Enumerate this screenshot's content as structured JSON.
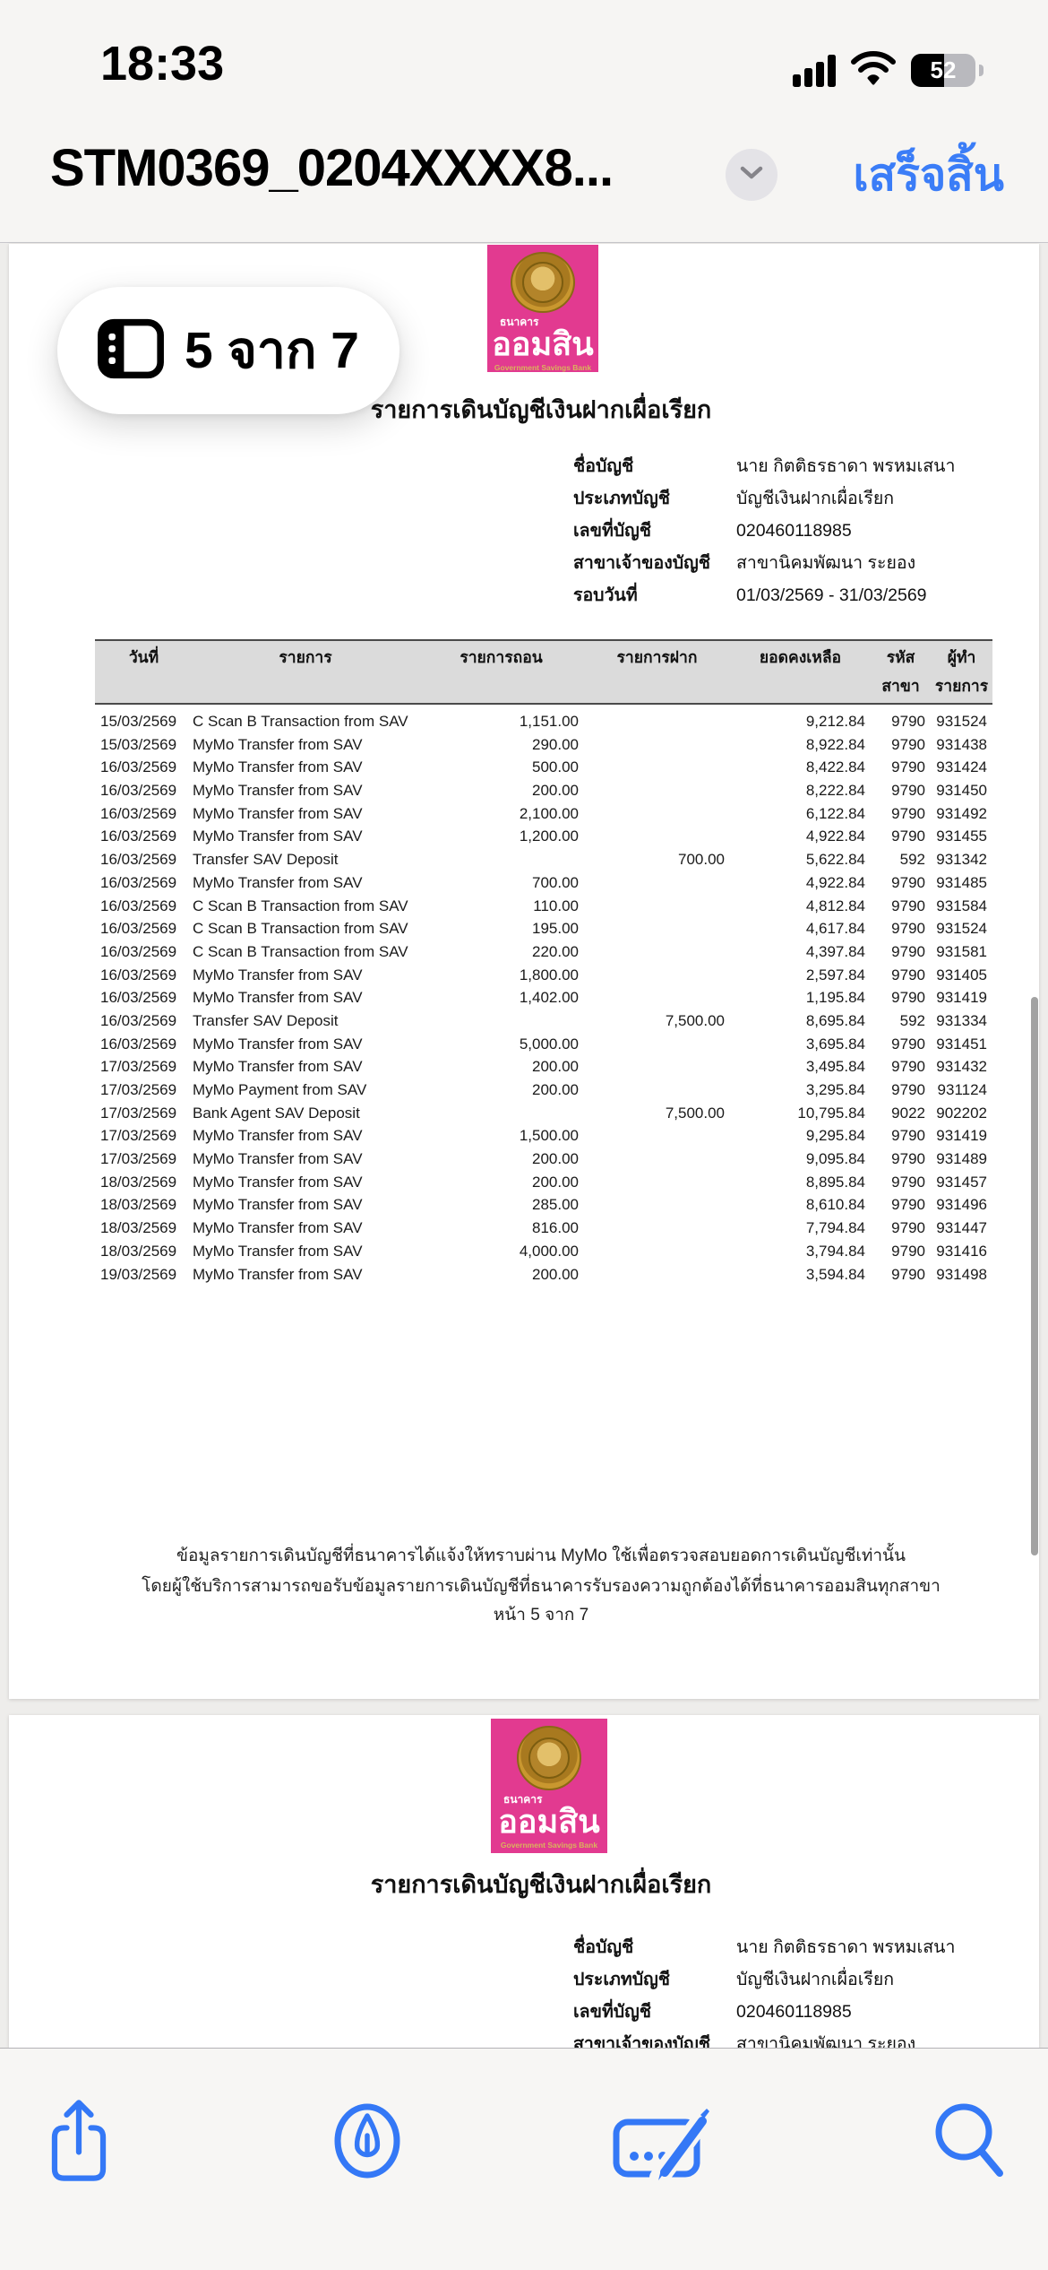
{
  "status_bar": {
    "time": "18:33",
    "battery_percent": "52"
  },
  "nav": {
    "title": "STM0369_0204XXXX8...",
    "done": "เสร็จสิ้น"
  },
  "page_pill": {
    "label": "5 จาก 7"
  },
  "bank": {
    "brand_top": "ธนาคาร",
    "brand": "ออมสิน",
    "brand_en": "Government Savings Bank",
    "brand_pink": "#E23A90",
    "seal_gold": "#B98A2D"
  },
  "statement": {
    "title": "รายการเดินบัญชีเงินฝากเผื่อเรียก",
    "account_info": [
      {
        "label": "ชื่อบัญชี",
        "value": "นาย กิตติธรธาดา พรหมเสนา"
      },
      {
        "label": "ประเภทบัญชี",
        "value": "บัญชีเงินฝากเผื่อเรียก"
      },
      {
        "label": "เลขที่บัญชี",
        "value": "020460118985"
      },
      {
        "label": "สาขาเจ้าของบัญชี",
        "value": "สาขานิคมพัฒนา ระยอง"
      },
      {
        "label": "รอบวันที่",
        "value": "01/03/2569 - 31/03/2569"
      }
    ],
    "table": {
      "headers": [
        {
          "l1": "วันที่",
          "l2": ""
        },
        {
          "l1": "รายการ",
          "l2": ""
        },
        {
          "l1": "รายการถอน",
          "l2": ""
        },
        {
          "l1": "รายการฝาก",
          "l2": ""
        },
        {
          "l1": "ยอดคงเหลือ",
          "l2": ""
        },
        {
          "l1": "รหัส",
          "l2": "สาขา"
        },
        {
          "l1": "ผู้ทำ",
          "l2": "รายการ"
        }
      ],
      "rows": [
        {
          "date": "15/03/2569",
          "desc": "C Scan B Transaction from SAV",
          "out": "1,151.00",
          "in": "",
          "bal": "9,212.84",
          "br": "9790",
          "by": "931524"
        },
        {
          "date": "15/03/2569",
          "desc": "MyMo Transfer from SAV",
          "out": "290.00",
          "in": "",
          "bal": "8,922.84",
          "br": "9790",
          "by": "931438"
        },
        {
          "date": "16/03/2569",
          "desc": "MyMo Transfer from SAV",
          "out": "500.00",
          "in": "",
          "bal": "8,422.84",
          "br": "9790",
          "by": "931424"
        },
        {
          "date": "16/03/2569",
          "desc": "MyMo Transfer from SAV",
          "out": "200.00",
          "in": "",
          "bal": "8,222.84",
          "br": "9790",
          "by": "931450"
        },
        {
          "date": "16/03/2569",
          "desc": "MyMo Transfer from SAV",
          "out": "2,100.00",
          "in": "",
          "bal": "6,122.84",
          "br": "9790",
          "by": "931492"
        },
        {
          "date": "16/03/2569",
          "desc": "MyMo Transfer from SAV",
          "out": "1,200.00",
          "in": "",
          "bal": "4,922.84",
          "br": "9790",
          "by": "931455"
        },
        {
          "date": "16/03/2569",
          "desc": "Transfer SAV Deposit",
          "out": "",
          "in": "700.00",
          "bal": "5,622.84",
          "br": "592",
          "by": "931342"
        },
        {
          "date": "16/03/2569",
          "desc": "MyMo Transfer from SAV",
          "out": "700.00",
          "in": "",
          "bal": "4,922.84",
          "br": "9790",
          "by": "931485"
        },
        {
          "date": "16/03/2569",
          "desc": "C Scan B Transaction from SAV",
          "out": "110.00",
          "in": "",
          "bal": "4,812.84",
          "br": "9790",
          "by": "931584"
        },
        {
          "date": "16/03/2569",
          "desc": "C Scan B Transaction from SAV",
          "out": "195.00",
          "in": "",
          "bal": "4,617.84",
          "br": "9790",
          "by": "931524"
        },
        {
          "date": "16/03/2569",
          "desc": "C Scan B Transaction from SAV",
          "out": "220.00",
          "in": "",
          "bal": "4,397.84",
          "br": "9790",
          "by": "931581"
        },
        {
          "date": "16/03/2569",
          "desc": "MyMo Transfer from SAV",
          "out": "1,800.00",
          "in": "",
          "bal": "2,597.84",
          "br": "9790",
          "by": "931405"
        },
        {
          "date": "16/03/2569",
          "desc": "MyMo Transfer from SAV",
          "out": "1,402.00",
          "in": "",
          "bal": "1,195.84",
          "br": "9790",
          "by": "931419"
        },
        {
          "date": "16/03/2569",
          "desc": "Transfer SAV Deposit",
          "out": "",
          "in": "7,500.00",
          "bal": "8,695.84",
          "br": "592",
          "by": "931334"
        },
        {
          "date": "16/03/2569",
          "desc": "MyMo Transfer from SAV",
          "out": "5,000.00",
          "in": "",
          "bal": "3,695.84",
          "br": "9790",
          "by": "931451"
        },
        {
          "date": "17/03/2569",
          "desc": "MyMo Transfer from SAV",
          "out": "200.00",
          "in": "",
          "bal": "3,495.84",
          "br": "9790",
          "by": "931432"
        },
        {
          "date": "17/03/2569",
          "desc": "MyMo Payment from SAV",
          "out": "200.00",
          "in": "",
          "bal": "3,295.84",
          "br": "9790",
          "by": "931124"
        },
        {
          "date": "17/03/2569",
          "desc": "Bank Agent SAV Deposit",
          "out": "",
          "in": "7,500.00",
          "bal": "10,795.84",
          "br": "9022",
          "by": "902202"
        },
        {
          "date": "17/03/2569",
          "desc": "MyMo Transfer from SAV",
          "out": "1,500.00",
          "in": "",
          "bal": "9,295.84",
          "br": "9790",
          "by": "931419"
        },
        {
          "date": "17/03/2569",
          "desc": "MyMo Transfer from SAV",
          "out": "200.00",
          "in": "",
          "bal": "9,095.84",
          "br": "9790",
          "by": "931489"
        },
        {
          "date": "18/03/2569",
          "desc": "MyMo Transfer from SAV",
          "out": "200.00",
          "in": "",
          "bal": "8,895.84",
          "br": "9790",
          "by": "931457"
        },
        {
          "date": "18/03/2569",
          "desc": "MyMo Transfer from SAV",
          "out": "285.00",
          "in": "",
          "bal": "8,610.84",
          "br": "9790",
          "by": "931496"
        },
        {
          "date": "18/03/2569",
          "desc": "MyMo Transfer from SAV",
          "out": "816.00",
          "in": "",
          "bal": "7,794.84",
          "br": "9790",
          "by": "931447"
        },
        {
          "date": "18/03/2569",
          "desc": "MyMo Transfer from SAV",
          "out": "4,000.00",
          "in": "",
          "bal": "3,794.84",
          "br": "9790",
          "by": "931416"
        },
        {
          "date": "19/03/2569",
          "desc": "MyMo Transfer from SAV",
          "out": "200.00",
          "in": "",
          "bal": "3,594.84",
          "br": "9790",
          "by": "931498"
        }
      ]
    },
    "footer": {
      "line1": "ข้อมูลรายการเดินบัญชีที่ธนาคารได้แจ้งให้ทราบผ่าน MyMo ใช้เพื่อตรวจสอบยอดการเดินบัญชีเท่านั้น",
      "line2": "โดยผู้ใช้บริการสามารถขอรับข้อมูลรายการเดินบัญชีที่ธนาคารรับรองความถูกต้องได้ที่ธนาคารออมสินทุกสาขา",
      "page": "หน้า 5 จาก 7"
    }
  },
  "toolbar": {
    "icons": [
      "share-icon",
      "markup-icon",
      "signature-icon",
      "search-icon"
    ]
  },
  "colors": {
    "accent_blue": "#3478F6"
  }
}
